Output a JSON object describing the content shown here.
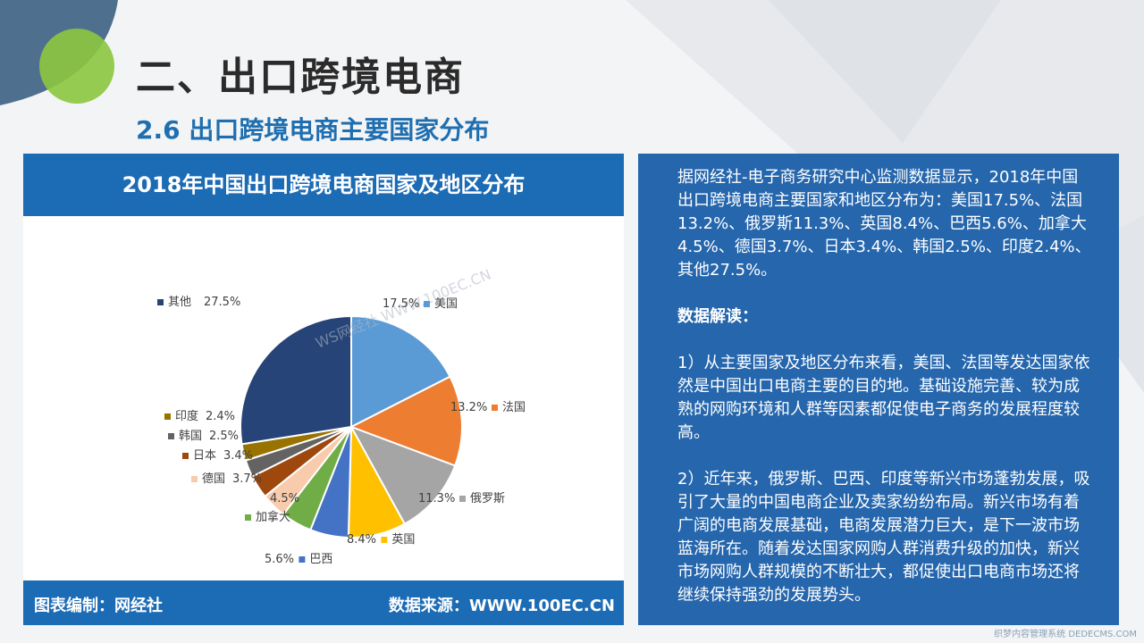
{
  "slide": {
    "title": "二、出口跨境电商",
    "subtitle": "2.6 出口跨境电商主要国家分布"
  },
  "chart_panel": {
    "footer_left": "图表编制：网经社",
    "footer_right": "数据来源：WWW.100EC.CN",
    "watermark_text": "WS网经社 WWW.100EC.CN"
  },
  "chart_data": {
    "type": "pie",
    "title": "2018年中国出口跨境电商国家及地区分布",
    "slices": [
      {
        "label": "美国",
        "value": 17.5,
        "display": "17.5%",
        "color": "#5b9bd5"
      },
      {
        "label": "法国",
        "value": 13.2,
        "display": "13.2%",
        "color": "#ed7d31"
      },
      {
        "label": "俄罗斯",
        "value": 11.3,
        "display": "11.3%",
        "color": "#a5a5a5"
      },
      {
        "label": "英国",
        "value": 8.4,
        "display": "8.4%",
        "color": "#ffc000"
      },
      {
        "label": "巴西",
        "value": 5.6,
        "display": "5.6%",
        "color": "#4472c4"
      },
      {
        "label": "加拿大",
        "value": 4.5,
        "display": "4.5%",
        "color": "#70ad47"
      },
      {
        "label": "德国",
        "value": 3.7,
        "display": "3.7%",
        "color": "#f8cbad"
      },
      {
        "label": "日本",
        "value": 3.4,
        "display": "3.4%",
        "color": "#9e480e"
      },
      {
        "label": "韩国",
        "value": 2.5,
        "display": "2.5%",
        "color": "#636363"
      },
      {
        "label": "印度",
        "value": 2.4,
        "display": "2.4%",
        "color": "#997300"
      },
      {
        "label": "其他",
        "value": 27.5,
        "display": "27.5%",
        "color": "#264478"
      }
    ]
  },
  "text_panel": {
    "intro": "据网经社-电子商务研究中心监测数据显示，2018年中国出口跨境电商主要国家和地区分布为：美国17.5%、法国13.2%、俄罗斯11.3%、英国8.4%、巴西5.6%、加拿大4.5%、德国3.7%、日本3.4%、韩国2.5%、印度2.4%、其他27.5%。",
    "heading": "数据解读：",
    "point1": "1）从主要国家及地区分布来看，美国、法国等发达国家依然是中国出口电商主要的目的地。基础设施完善、较为成熟的网购环境和人群等因素都促使电子商务的发展程度较高。",
    "point2": "2）近年来，俄罗斯、巴西、印度等新兴市场蓬勃发展，吸引了大量的中国电商企业及卖家纷纷布局。新兴市场有着广阔的电商发展基础，电商发展潜力巨大，是下一波市场蓝海所在。随着发达国家网购人群消费升级的加快，新兴市场网购人群规模的不断壮大，都促使出口电商市场还将继续保持强劲的发展势头。"
  },
  "site_watermark": "织梦内容管理系统 DEDECMS.COM",
  "colors": {
    "accent_blue": "#1c6bb5",
    "panel_blue": "#2566ad",
    "circle_green": "#8cc63f",
    "corner_slate": "#4f6f8f"
  }
}
